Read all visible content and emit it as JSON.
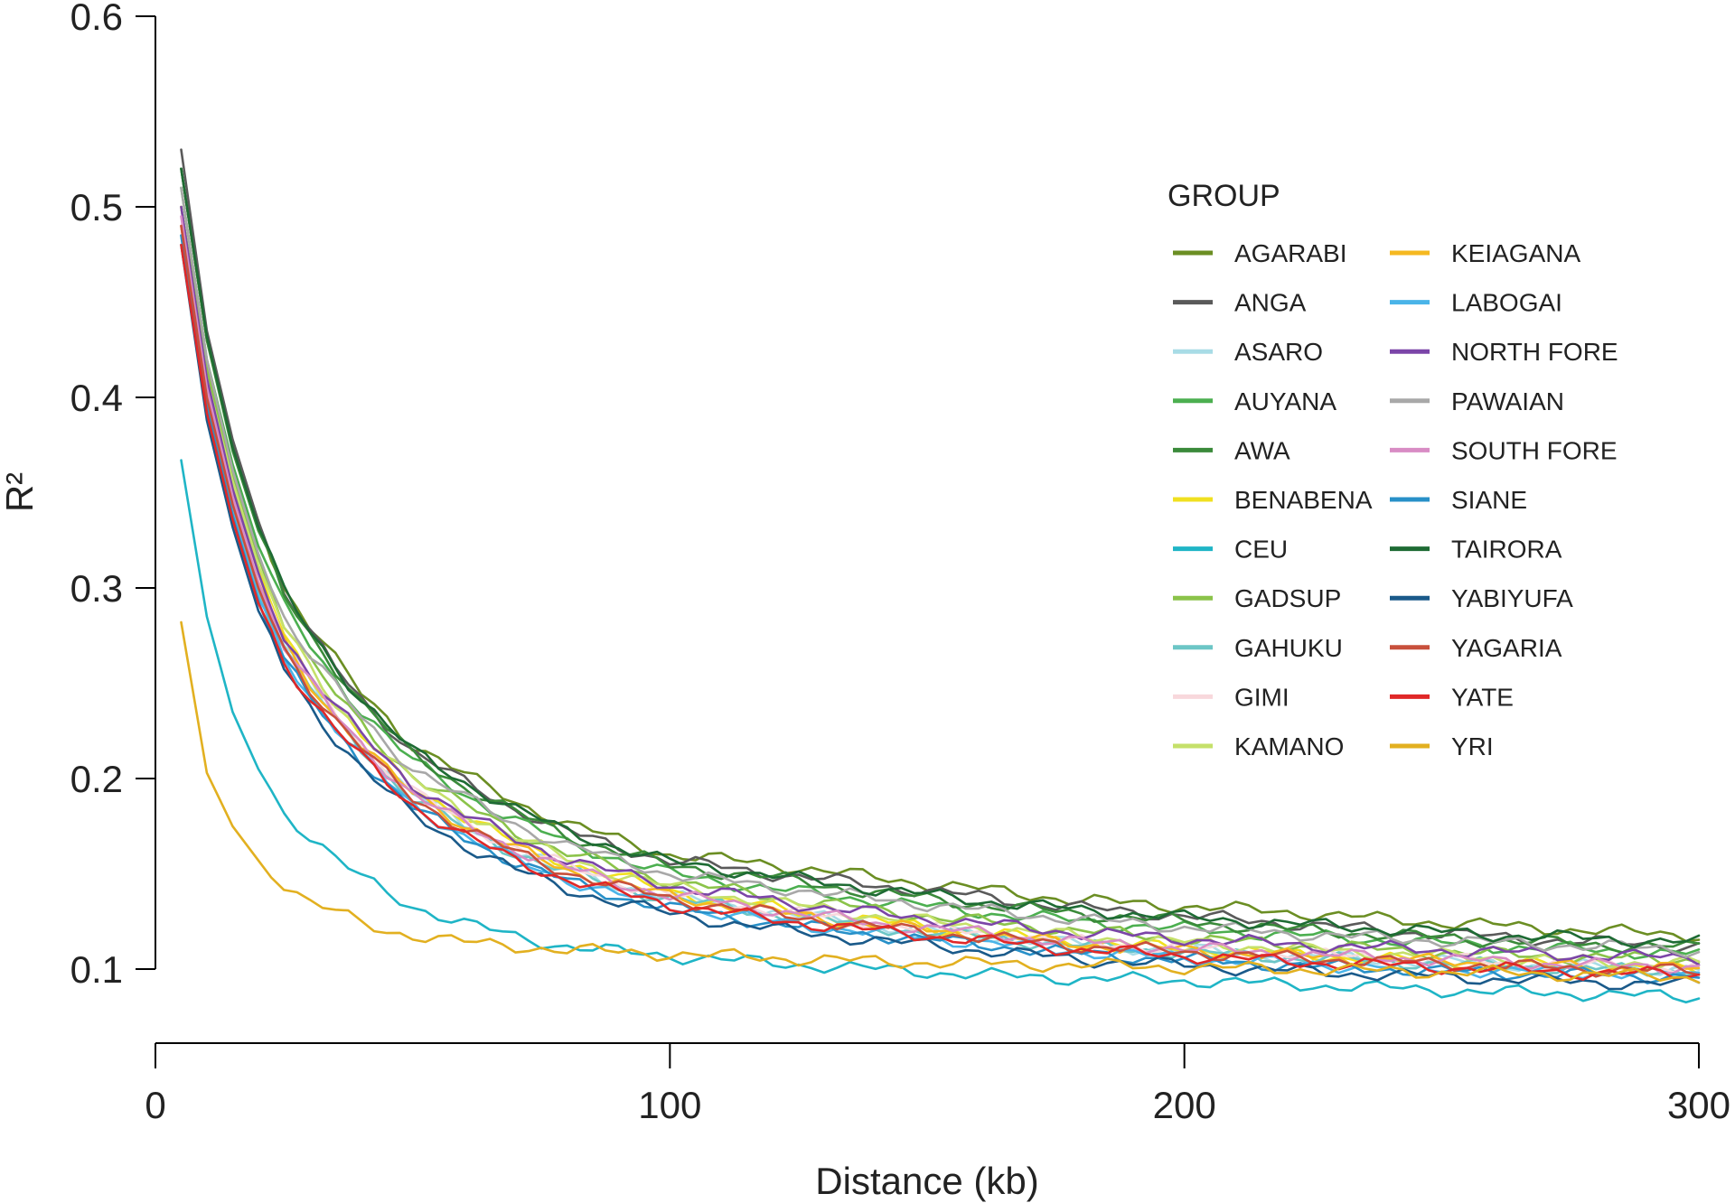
{
  "chart_data": {
    "type": "line",
    "xlabel": "Distance (kb)",
    "ylabel": "R²",
    "xlim": [
      0,
      300
    ],
    "ylim": [
      0.1,
      0.6
    ],
    "xticks": [
      0,
      100,
      200,
      300
    ],
    "yticks": [
      0.1,
      0.2,
      0.3,
      0.4,
      0.5,
      0.6
    ],
    "xtick_labels": [
      "0",
      "100",
      "200",
      "300"
    ],
    "ytick_labels": [
      "0.1",
      "0.2",
      "0.3",
      "0.4",
      "0.5",
      "0.6"
    ],
    "legend": {
      "title": "GROUP",
      "placement": "top-right",
      "columns": 2
    },
    "grid": false,
    "x": [
      5,
      10,
      15,
      20,
      25,
      30,
      35,
      40,
      45,
      50,
      60,
      70,
      80,
      90,
      100,
      120,
      140,
      160,
      180,
      200,
      220,
      240,
      260,
      280,
      300
    ],
    "series": [
      {
        "name": "AGARABI",
        "color": "#6b8e23",
        "values": [
          0.52,
          0.43,
          0.375,
          0.335,
          0.3,
          0.28,
          0.262,
          0.245,
          0.232,
          0.218,
          0.202,
          0.188,
          0.176,
          0.168,
          0.16,
          0.155,
          0.148,
          0.142,
          0.136,
          0.133,
          0.13,
          0.126,
          0.123,
          0.12,
          0.118
        ]
      },
      {
        "name": "ANGA",
        "color": "#5a5a5a",
        "values": [
          0.53,
          0.435,
          0.378,
          0.335,
          0.298,
          0.276,
          0.258,
          0.242,
          0.228,
          0.214,
          0.198,
          0.184,
          0.172,
          0.164,
          0.157,
          0.15,
          0.144,
          0.138,
          0.132,
          0.128,
          0.124,
          0.12,
          0.117,
          0.114,
          0.112
        ]
      },
      {
        "name": "ASARO",
        "color": "#a8dce6",
        "values": [
          0.49,
          0.4,
          0.345,
          0.3,
          0.27,
          0.25,
          0.232,
          0.218,
          0.204,
          0.192,
          0.176,
          0.162,
          0.152,
          0.144,
          0.138,
          0.13,
          0.123,
          0.118,
          0.113,
          0.11,
          0.107,
          0.105,
          0.103,
          0.101,
          0.1
        ]
      },
      {
        "name": "AUYANA",
        "color": "#4caf50",
        "values": [
          0.51,
          0.42,
          0.365,
          0.322,
          0.29,
          0.27,
          0.252,
          0.236,
          0.222,
          0.209,
          0.192,
          0.178,
          0.166,
          0.158,
          0.15,
          0.142,
          0.136,
          0.13,
          0.125,
          0.121,
          0.118,
          0.115,
          0.112,
          0.11,
          0.108
        ]
      },
      {
        "name": "AWA",
        "color": "#3a8a3a",
        "values": [
          0.52,
          0.43,
          0.372,
          0.33,
          0.296,
          0.276,
          0.258,
          0.24,
          0.226,
          0.212,
          0.196,
          0.182,
          0.17,
          0.162,
          0.154,
          0.148,
          0.14,
          0.134,
          0.129,
          0.125,
          0.121,
          0.118,
          0.115,
          0.113,
          0.111
        ]
      },
      {
        "name": "BENABENA",
        "color": "#f0e020",
        "values": [
          0.5,
          0.41,
          0.355,
          0.31,
          0.276,
          0.255,
          0.238,
          0.222,
          0.208,
          0.196,
          0.18,
          0.166,
          0.156,
          0.148,
          0.141,
          0.132,
          0.125,
          0.119,
          0.114,
          0.111,
          0.108,
          0.105,
          0.103,
          0.101,
          0.1
        ]
      },
      {
        "name": "CEU",
        "color": "#1fb5c6",
        "values": [
          0.367,
          0.285,
          0.235,
          0.205,
          0.182,
          0.17,
          0.158,
          0.148,
          0.14,
          0.133,
          0.124,
          0.117,
          0.112,
          0.109,
          0.107,
          0.103,
          0.1,
          0.097,
          0.095,
          0.094,
          0.092,
          0.09,
          0.088,
          0.087,
          0.085
        ]
      },
      {
        "name": "GADSUP",
        "color": "#8bc34a",
        "values": [
          0.5,
          0.415,
          0.36,
          0.316,
          0.283,
          0.262,
          0.244,
          0.228,
          0.214,
          0.202,
          0.186,
          0.172,
          0.161,
          0.153,
          0.146,
          0.138,
          0.131,
          0.125,
          0.12,
          0.116,
          0.113,
          0.11,
          0.108,
          0.106,
          0.105
        ]
      },
      {
        "name": "GAHUKU",
        "color": "#6cc6c6",
        "values": [
          0.49,
          0.4,
          0.342,
          0.298,
          0.268,
          0.248,
          0.23,
          0.216,
          0.202,
          0.19,
          0.174,
          0.161,
          0.151,
          0.143,
          0.137,
          0.129,
          0.122,
          0.117,
          0.112,
          0.109,
          0.106,
          0.104,
          0.102,
          0.1,
          0.099
        ]
      },
      {
        "name": "GIMI",
        "color": "#f8d8dc",
        "values": [
          0.49,
          0.405,
          0.35,
          0.305,
          0.272,
          0.252,
          0.234,
          0.219,
          0.205,
          0.193,
          0.177,
          0.164,
          0.154,
          0.146,
          0.139,
          0.131,
          0.124,
          0.119,
          0.114,
          0.111,
          0.108,
          0.106,
          0.104,
          0.102,
          0.101
        ]
      },
      {
        "name": "KAMANO",
        "color": "#c5e06a",
        "values": [
          0.5,
          0.41,
          0.356,
          0.312,
          0.279,
          0.258,
          0.24,
          0.225,
          0.211,
          0.199,
          0.183,
          0.169,
          0.158,
          0.15,
          0.143,
          0.135,
          0.128,
          0.122,
          0.117,
          0.114,
          0.111,
          0.108,
          0.106,
          0.104,
          0.103
        ]
      },
      {
        "name": "KEIAGANA",
        "color": "#f5b820",
        "values": [
          0.49,
          0.402,
          0.347,
          0.303,
          0.271,
          0.25,
          0.233,
          0.218,
          0.204,
          0.192,
          0.176,
          0.163,
          0.152,
          0.145,
          0.138,
          0.13,
          0.123,
          0.118,
          0.113,
          0.11,
          0.107,
          0.105,
          0.103,
          0.101,
          0.1
        ]
      },
      {
        "name": "LABOGAI",
        "color": "#4ab4e8",
        "values": [
          0.485,
          0.395,
          0.34,
          0.295,
          0.264,
          0.244,
          0.227,
          0.212,
          0.198,
          0.186,
          0.17,
          0.157,
          0.147,
          0.139,
          0.133,
          0.125,
          0.119,
          0.114,
          0.109,
          0.106,
          0.103,
          0.101,
          0.099,
          0.098,
          0.097
        ]
      },
      {
        "name": "NORTH FORE",
        "color": "#7b45a8",
        "values": [
          0.5,
          0.41,
          0.352,
          0.308,
          0.275,
          0.255,
          0.238,
          0.223,
          0.209,
          0.197,
          0.181,
          0.168,
          0.158,
          0.15,
          0.144,
          0.136,
          0.129,
          0.124,
          0.119,
          0.116,
          0.113,
          0.111,
          0.109,
          0.107,
          0.106
        ]
      },
      {
        "name": "PAWAIAN",
        "color": "#a8a8a8",
        "values": [
          0.51,
          0.42,
          0.362,
          0.318,
          0.285,
          0.265,
          0.248,
          0.232,
          0.218,
          0.206,
          0.19,
          0.176,
          0.165,
          0.157,
          0.15,
          0.143,
          0.137,
          0.131,
          0.126,
          0.122,
          0.119,
          0.116,
          0.114,
          0.112,
          0.11
        ]
      },
      {
        "name": "SOUTH FORE",
        "color": "#d88cc4",
        "values": [
          0.495,
          0.405,
          0.348,
          0.303,
          0.27,
          0.25,
          0.233,
          0.218,
          0.204,
          0.192,
          0.176,
          0.163,
          0.153,
          0.145,
          0.139,
          0.131,
          0.124,
          0.119,
          0.114,
          0.111,
          0.108,
          0.106,
          0.104,
          0.102,
          0.101
        ]
      },
      {
        "name": "SIANE",
        "color": "#2890c8",
        "values": [
          0.485,
          0.395,
          0.338,
          0.293,
          0.262,
          0.242,
          0.225,
          0.21,
          0.197,
          0.185,
          0.169,
          0.156,
          0.146,
          0.138,
          0.132,
          0.124,
          0.118,
          0.113,
          0.108,
          0.105,
          0.102,
          0.1,
          0.098,
          0.097,
          0.096
        ]
      },
      {
        "name": "TAIRORA",
        "color": "#1e6b34",
        "values": [
          0.52,
          0.432,
          0.374,
          0.332,
          0.298,
          0.277,
          0.259,
          0.242,
          0.228,
          0.214,
          0.198,
          0.184,
          0.172,
          0.164,
          0.156,
          0.149,
          0.142,
          0.136,
          0.131,
          0.127,
          0.124,
          0.121,
          0.118,
          0.116,
          0.114
        ]
      },
      {
        "name": "YABIYUFA",
        "color": "#1a5a8a",
        "values": [
          0.48,
          0.388,
          0.332,
          0.288,
          0.258,
          0.238,
          0.221,
          0.206,
          0.193,
          0.181,
          0.165,
          0.152,
          0.142,
          0.135,
          0.129,
          0.121,
          0.115,
          0.11,
          0.105,
          0.102,
          0.099,
          0.097,
          0.095,
          0.093,
          0.092
        ]
      },
      {
        "name": "YAGARIA",
        "color": "#c8503c",
        "values": [
          0.49,
          0.4,
          0.344,
          0.3,
          0.268,
          0.248,
          0.231,
          0.216,
          0.202,
          0.19,
          0.174,
          0.161,
          0.151,
          0.143,
          0.137,
          0.129,
          0.122,
          0.117,
          0.112,
          0.109,
          0.106,
          0.104,
          0.102,
          0.1,
          0.099
        ]
      },
      {
        "name": "YATE",
        "color": "#e02828",
        "values": [
          0.48,
          0.392,
          0.336,
          0.292,
          0.262,
          0.242,
          0.226,
          0.211,
          0.198,
          0.186,
          0.17,
          0.157,
          0.147,
          0.14,
          0.134,
          0.126,
          0.12,
          0.115,
          0.11,
          0.107,
          0.104,
          0.102,
          0.1,
          0.098,
          0.097
        ]
      },
      {
        "name": "YRI",
        "color": "#e2b020",
        "values": [
          0.282,
          0.203,
          0.175,
          0.157,
          0.145,
          0.135,
          0.13,
          0.124,
          0.12,
          0.118,
          0.114,
          0.112,
          0.11,
          0.109,
          0.108,
          0.106,
          0.104,
          0.103,
          0.102,
          0.101,
          0.1,
          0.099,
          0.098,
          0.097,
          0.096
        ]
      }
    ]
  }
}
